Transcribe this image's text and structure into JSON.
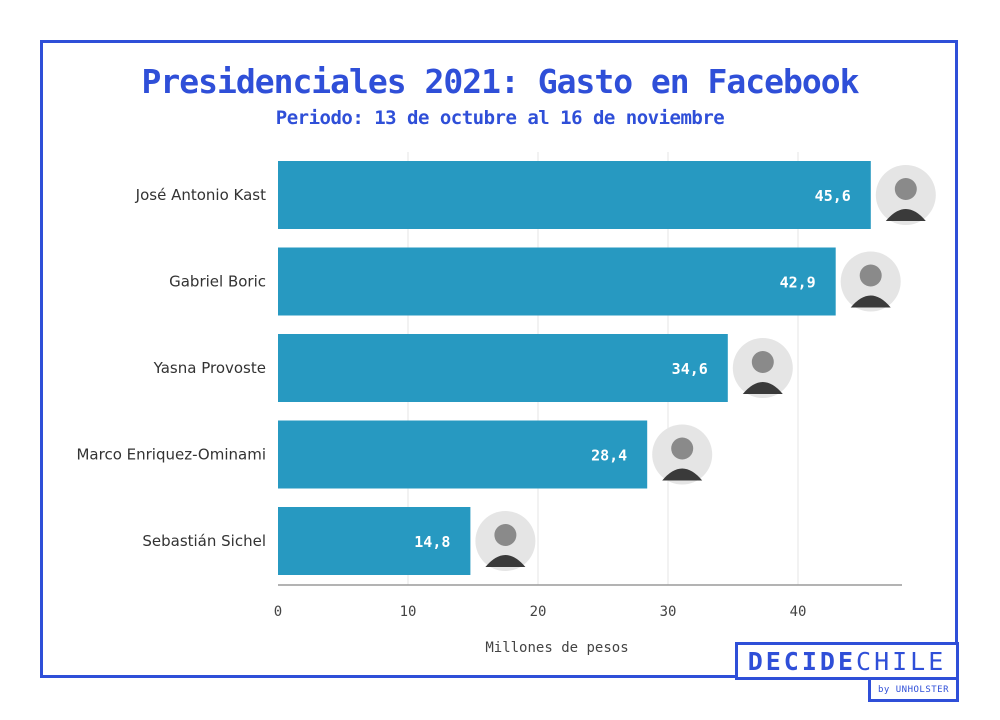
{
  "header": {
    "title": "Presidenciales 2021: Gasto en Facebook",
    "subtitle": "Periodo: 13 de octubre al 16 de noviembre"
  },
  "chart_data": {
    "type": "bar",
    "orientation": "horizontal",
    "categories": [
      "José Antonio Kast",
      "Gabriel Boric",
      "Yasna Provoste",
      "Marco Enriquez-Ominami",
      "Sebastián Sichel"
    ],
    "values": [
      45.6,
      42.9,
      34.6,
      28.4,
      14.8
    ],
    "data_labels": [
      "45,6",
      "42,9",
      "34,6",
      "28,4",
      "14,8"
    ],
    "xlabel": "Millones de pesos",
    "ylabel": "",
    "xlim": [
      0,
      48
    ],
    "xticks": [
      0,
      10,
      20,
      30,
      40
    ],
    "grid": "vertical",
    "bar_color": "#2799c1",
    "grid_color": "#e6e6e6",
    "axis_color": "#9a9a9a",
    "label_color": "#ffffff"
  },
  "branding": {
    "logo_bold": "DECIDE",
    "logo_light": "CHILE",
    "byline": "by UNHOLSTER",
    "accent": "#2f4fd8"
  }
}
